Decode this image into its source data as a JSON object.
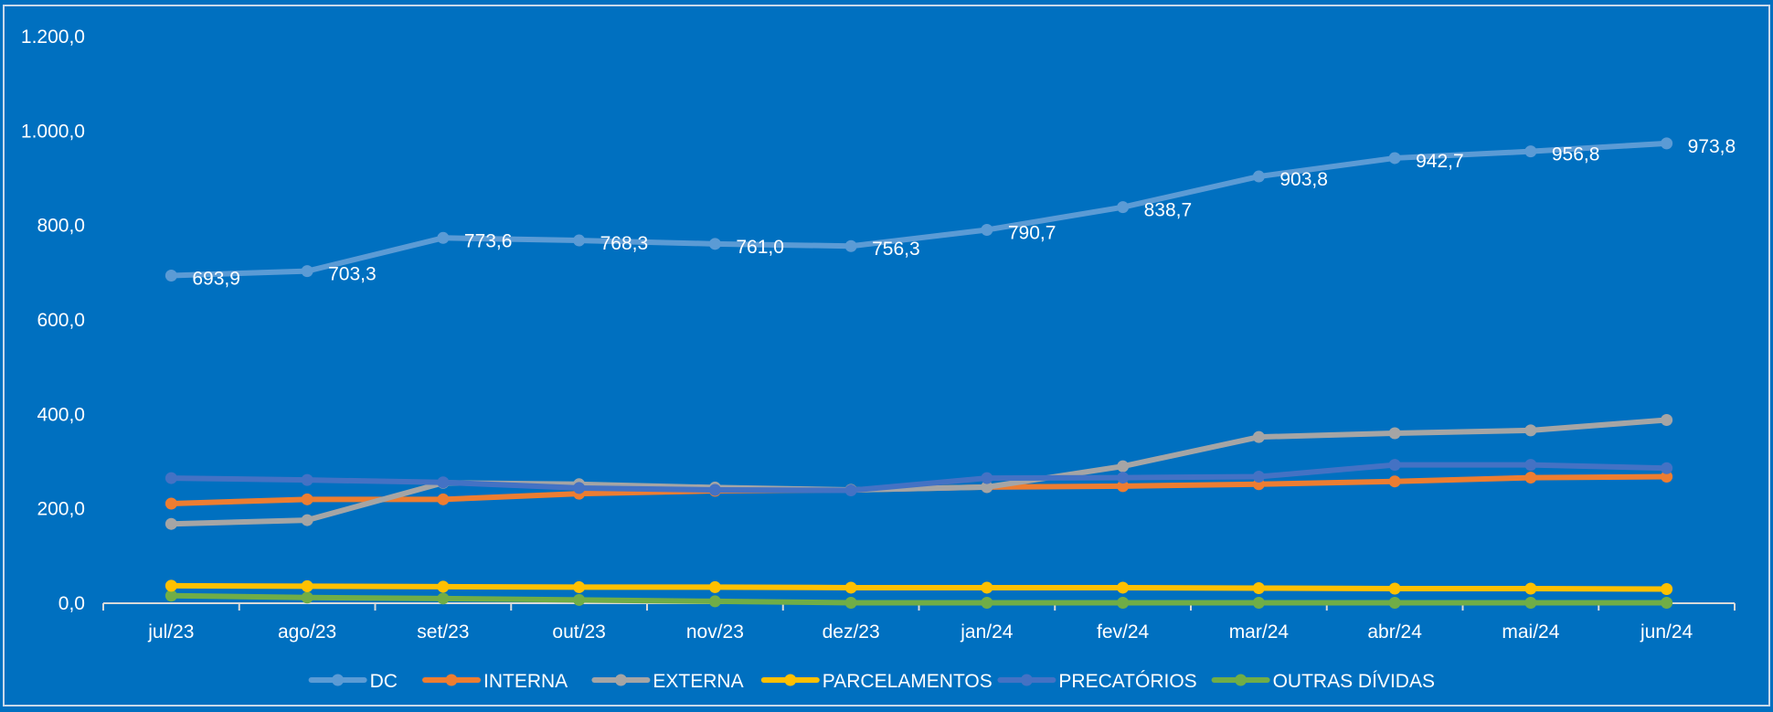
{
  "colors": {
    "background": "#0070C0",
    "axis_text": "#FFFFFF",
    "DC": "#5B9BD5",
    "INTERNA": "#ED7D31",
    "EXTERNA": "#A5A5A5",
    "PARCELAMENTOS": "#FFC000",
    "PRECATÓRIOS": "#4472C4",
    "OUTRAS DÍVIDAS": "#70AD47"
  },
  "chart_data": {
    "type": "line",
    "title": "",
    "xlabel": "",
    "ylabel": "",
    "categories": [
      "jul/23",
      "ago/23",
      "set/23",
      "out/23",
      "nov/23",
      "dez/23",
      "jan/24",
      "fev/24",
      "mar/24",
      "abr/24",
      "mai/24",
      "jun/24"
    ],
    "ylim": [
      0,
      1200
    ],
    "yticks": [
      0,
      200,
      400,
      600,
      800,
      1000,
      1200
    ],
    "ytick_labels": [
      "0,0",
      "200,0",
      "400,0",
      "600,0",
      "800,0",
      "1.000,0",
      "1.200,0"
    ],
    "grid": false,
    "legend_position": "bottom",
    "series": [
      {
        "name": "DC",
        "values": [
          693.9,
          703.3,
          773.6,
          768.3,
          761.0,
          756.3,
          790.7,
          838.7,
          903.8,
          942.7,
          956.8,
          973.8
        ],
        "labels": [
          "693,9",
          "703,3",
          "773,6",
          "768,3",
          "761,0",
          "756,3",
          "790,7",
          "838,7",
          "903,8",
          "942,7",
          "956,8",
          "973,8"
        ]
      },
      {
        "name": "INTERNA",
        "values": [
          211,
          220,
          220,
          232,
          238,
          240,
          246,
          248,
          252,
          258,
          266,
          268
        ]
      },
      {
        "name": "EXTERNA",
        "values": [
          168,
          176,
          255,
          252,
          245,
          240,
          246,
          290,
          352,
          360,
          366,
          388
        ]
      },
      {
        "name": "PARCELAMENTOS",
        "values": [
          37,
          36,
          35,
          34,
          34,
          33,
          33,
          33,
          32,
          31,
          31,
          30
        ]
      },
      {
        "name": "PRECATÓRIOS",
        "values": [
          265,
          261,
          256,
          244,
          240,
          239,
          265,
          266,
          268,
          293,
          293,
          286
        ]
      },
      {
        "name": "OUTRAS DÍVIDAS",
        "values": [
          16,
          12,
          10,
          7,
          4,
          1,
          1,
          1,
          1,
          1,
          1,
          1
        ]
      }
    ]
  }
}
